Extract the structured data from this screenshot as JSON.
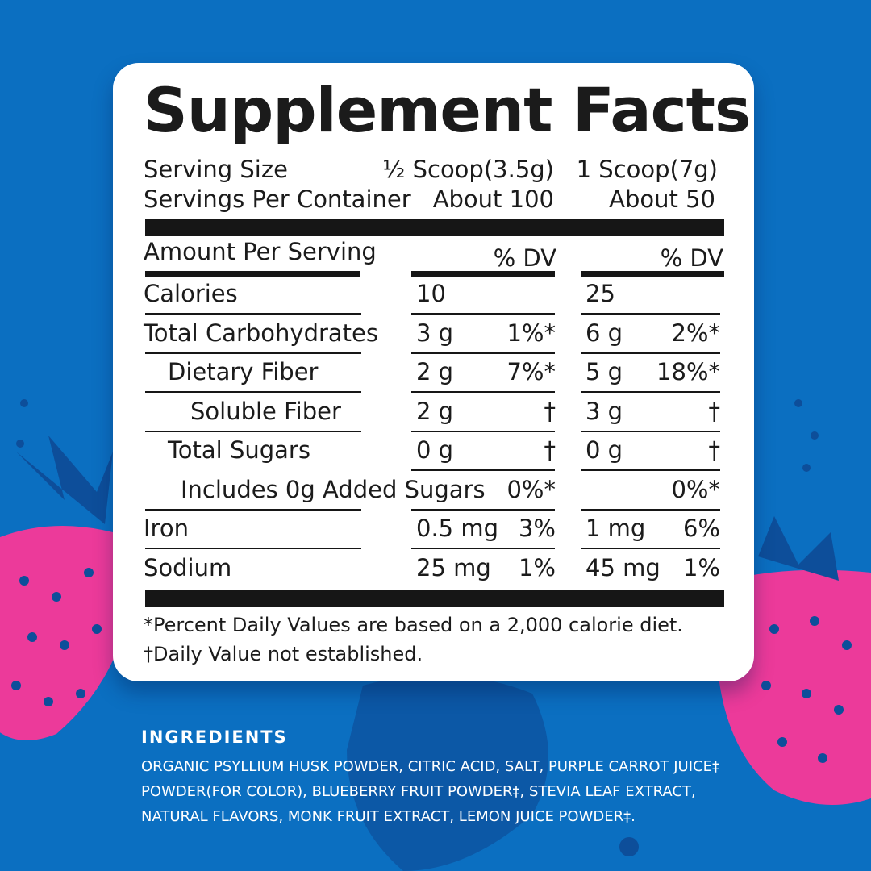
{
  "title": "Supplement Facts",
  "serving_size": {
    "label": "Serving Size",
    "col1": "½ Scoop(3.5g)",
    "col2": "1 Scoop(7g)"
  },
  "servings_per_container": {
    "label": "Servings Per Container",
    "col1": "About 100",
    "col2": "About 50"
  },
  "header": {
    "label": "Amount Per Serving",
    "col1": "% DV",
    "col2": "% DV"
  },
  "rows": [
    {
      "name": "Calories",
      "amount1": "10",
      "amount2": "25"
    },
    {
      "name": "Total Carbohydrates",
      "amount1": "3 g",
      "dv1": "1%*",
      "amount2": "6 g",
      "dv2": "2%*"
    },
    {
      "name": "Dietary Fiber",
      "amount1": "2 g",
      "dv1": "7%*",
      "amount2": "5 g",
      "dv2": "18%*"
    },
    {
      "name": "Soluble Fiber",
      "amount1": "2 g",
      "dv1": "†",
      "amount2": "3 g",
      "dv2": "†"
    },
    {
      "name": "Total Sugars",
      "amount1": "0 g",
      "dv1": "†",
      "amount2": "0 g",
      "dv2": "†"
    },
    {
      "name": "Includes 0g Added Sugars",
      "dv1": "0%*",
      "dv2": "0%*"
    },
    {
      "name": "Iron",
      "amount1": "0.5 mg",
      "dv1": "3%",
      "amount2": "1 mg",
      "dv2": "6%"
    },
    {
      "name": "Sodium",
      "amount1": "25 mg",
      "dv1": "1%",
      "amount2": "45 mg",
      "dv2": "1%"
    }
  ],
  "footnotes": [
    "*Percent Daily Values are based on a 2,000 calorie diet.",
    "†Daily Value not established."
  ],
  "ingredients": {
    "title": "INGREDIENTS",
    "lines": [
      "ORGANIC PSYLLIUM HUSK POWDER, CITRIC ACID, SALT, PURPLE CARROT JUICE‡",
      "POWDER(FOR COLOR), BLUEBERRY FRUIT POWDER‡, STEVIA LEAF EXTRACT,",
      "NATURAL FLAVORS, MONK FRUIT EXTRACT, LEMON JUICE POWDER‡."
    ]
  }
}
